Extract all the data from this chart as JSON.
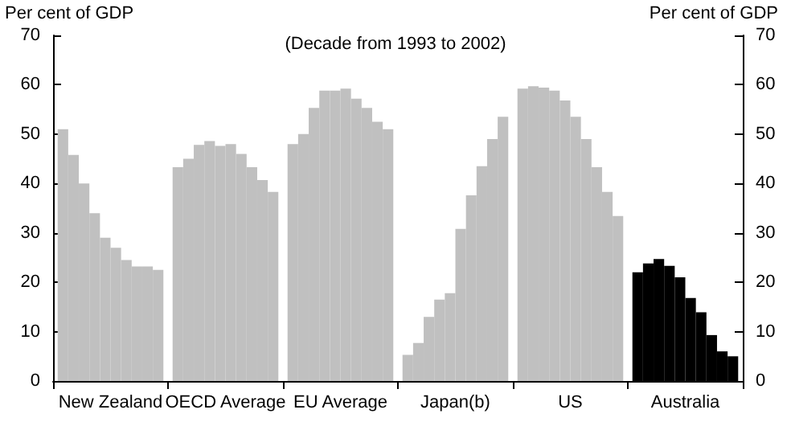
{
  "chart_data": {
    "type": "bar",
    "ylabel": "Per cent of GDP",
    "y2label": "Per cent of GDP",
    "annotations": [
      "(Decade from 1993 to 2002)"
    ],
    "categories": [
      "New Zealand",
      "OECD Average",
      "EU Average",
      "Japan(b)",
      "US",
      "Australia"
    ],
    "series": [
      {
        "colors": [
          "#c0c0c0",
          "#c0c0c0",
          "#c0c0c0",
          "#c0c0c0",
          "#c0c0c0",
          "#000000"
        ],
        "values": [
          51,
          43.3,
          48,
          5.3,
          59.2,
          22
        ]
      },
      {
        "colors": [
          "#c0c0c0",
          "#c0c0c0",
          "#c0c0c0",
          "#c0c0c0",
          "#c0c0c0",
          "#000000"
        ],
        "values": [
          45.8,
          45,
          50,
          7.7,
          59.7,
          23.8
        ]
      },
      {
        "colors": [
          "#c0c0c0",
          "#c0c0c0",
          "#c0c0c0",
          "#c0c0c0",
          "#c0c0c0",
          "#000000"
        ],
        "values": [
          40,
          47.8,
          55.3,
          13,
          59.4,
          24.7
        ]
      },
      {
        "colors": [
          "#c0c0c0",
          "#c0c0c0",
          "#c0c0c0",
          "#c0c0c0",
          "#c0c0c0",
          "#000000"
        ],
        "values": [
          34,
          48.6,
          58.8,
          16.5,
          58.8,
          23.3
        ]
      },
      {
        "colors": [
          "#c0c0c0",
          "#c0c0c0",
          "#c0c0c0",
          "#c0c0c0",
          "#c0c0c0",
          "#000000"
        ],
        "values": [
          29,
          47.6,
          58.8,
          17.8,
          56.8,
          21
        ]
      },
      {
        "colors": [
          "#c0c0c0",
          "#c0c0c0",
          "#c0c0c0",
          "#c0c0c0",
          "#c0c0c0",
          "#000000"
        ],
        "values": [
          27,
          48,
          59.2,
          30.8,
          53.5,
          16.8
        ]
      },
      {
        "colors": [
          "#c0c0c0",
          "#c0c0c0",
          "#c0c0c0",
          "#c0c0c0",
          "#c0c0c0",
          "#000000"
        ],
        "values": [
          24.5,
          46,
          57.2,
          37.6,
          49,
          13.9
        ]
      },
      {
        "colors": [
          "#c0c0c0",
          "#c0c0c0",
          "#c0c0c0",
          "#c0c0c0",
          "#c0c0c0",
          "#000000"
        ],
        "values": [
          23.2,
          43.3,
          55.3,
          43.5,
          43.3,
          9.3
        ]
      },
      {
        "colors": [
          "#c0c0c0",
          "#c0c0c0",
          "#c0c0c0",
          "#c0c0c0",
          "#c0c0c0",
          "#000000"
        ],
        "values": [
          23.2,
          40.7,
          52.5,
          49,
          38.3,
          6
        ]
      },
      {
        "colors": [
          "#c0c0c0",
          "#c0c0c0",
          "#c0c0c0",
          "#c0c0c0",
          "#c0c0c0",
          "#000000"
        ],
        "values": [
          22.5,
          38.3,
          51,
          53.5,
          33.4,
          5
        ]
      }
    ],
    "ylim": [
      0,
      70
    ],
    "yticks": [
      0,
      10,
      20,
      30,
      40,
      50,
      60,
      70
    ],
    "y2lim": [
      0,
      70
    ],
    "y2ticks": [
      0,
      10,
      20,
      30,
      40,
      50,
      60,
      70
    ],
    "grid": false,
    "legend": false
  }
}
